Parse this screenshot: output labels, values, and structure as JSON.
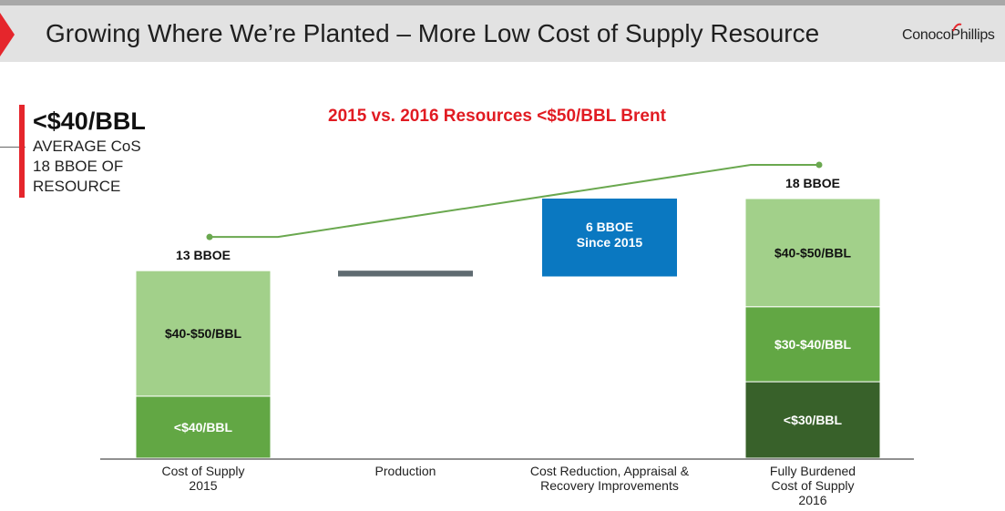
{
  "header": {
    "title": "Growing Where We’re Planted – More Low Cost of Supply Resource",
    "logo_text": "ConocoPhillips"
  },
  "kpi": {
    "big": "<$40/BBL",
    "lines": [
      "AVERAGE CoS",
      "18 BBOE OF",
      "RESOURCE"
    ]
  },
  "colors": {
    "accent_red": "#e5262c",
    "light_green": "#a2d08a",
    "mid_green": "#62a744",
    "dark_green": "#38612a",
    "blue": "#0a78c1",
    "gray": "#5f6b71",
    "line_green": "#6aa84f"
  },
  "chart_data": {
    "type": "bar",
    "subtype": "waterfall",
    "title": "2015 vs. 2016 Resources <$50/BBL Brent",
    "unit": "BBOE",
    "ylim": [
      0,
      18
    ],
    "categories": [
      {
        "label_lines": [
          "Cost of Supply",
          "2015"
        ]
      },
      {
        "label_lines": [
          "Production"
        ]
      },
      {
        "label_lines": [
          "Cost Reduction, Appraisal &",
          "Recovery Improvements"
        ]
      },
      {
        "label_lines": [
          "Fully Burdened",
          "Cost of Supply",
          "2016"
        ]
      }
    ],
    "bars": [
      {
        "category": 0,
        "total_label": "13 BBOE",
        "segments": [
          {
            "name": "<$40/BBL",
            "value": 4.3,
            "color": "#62a744"
          },
          {
            "name": "$40-$50/BBL",
            "value": 8.7,
            "color": "#a2d08a"
          }
        ]
      },
      {
        "category": 1,
        "floating": true,
        "from": 12.6,
        "to": 13.0,
        "color": "#5f6b71"
      },
      {
        "category": 2,
        "floating": true,
        "from": 12.6,
        "to": 18.0,
        "color": "#0a78c1",
        "label_lines": [
          "6 BBOE",
          "Since 2015"
        ]
      },
      {
        "category": 3,
        "total_label": "18 BBOE",
        "segments": [
          {
            "name": "<$30/BBL",
            "value": 5.3,
            "color": "#38612a"
          },
          {
            "name": "$30-$40/BBL",
            "value": 5.2,
            "color": "#62a744"
          },
          {
            "name": "$40-$50/BBL",
            "value": 7.5,
            "color": "#a2d08a"
          }
        ]
      }
    ],
    "trend_line": {
      "color": "#6aa84f",
      "from_category": 0,
      "to_category": 3
    }
  }
}
